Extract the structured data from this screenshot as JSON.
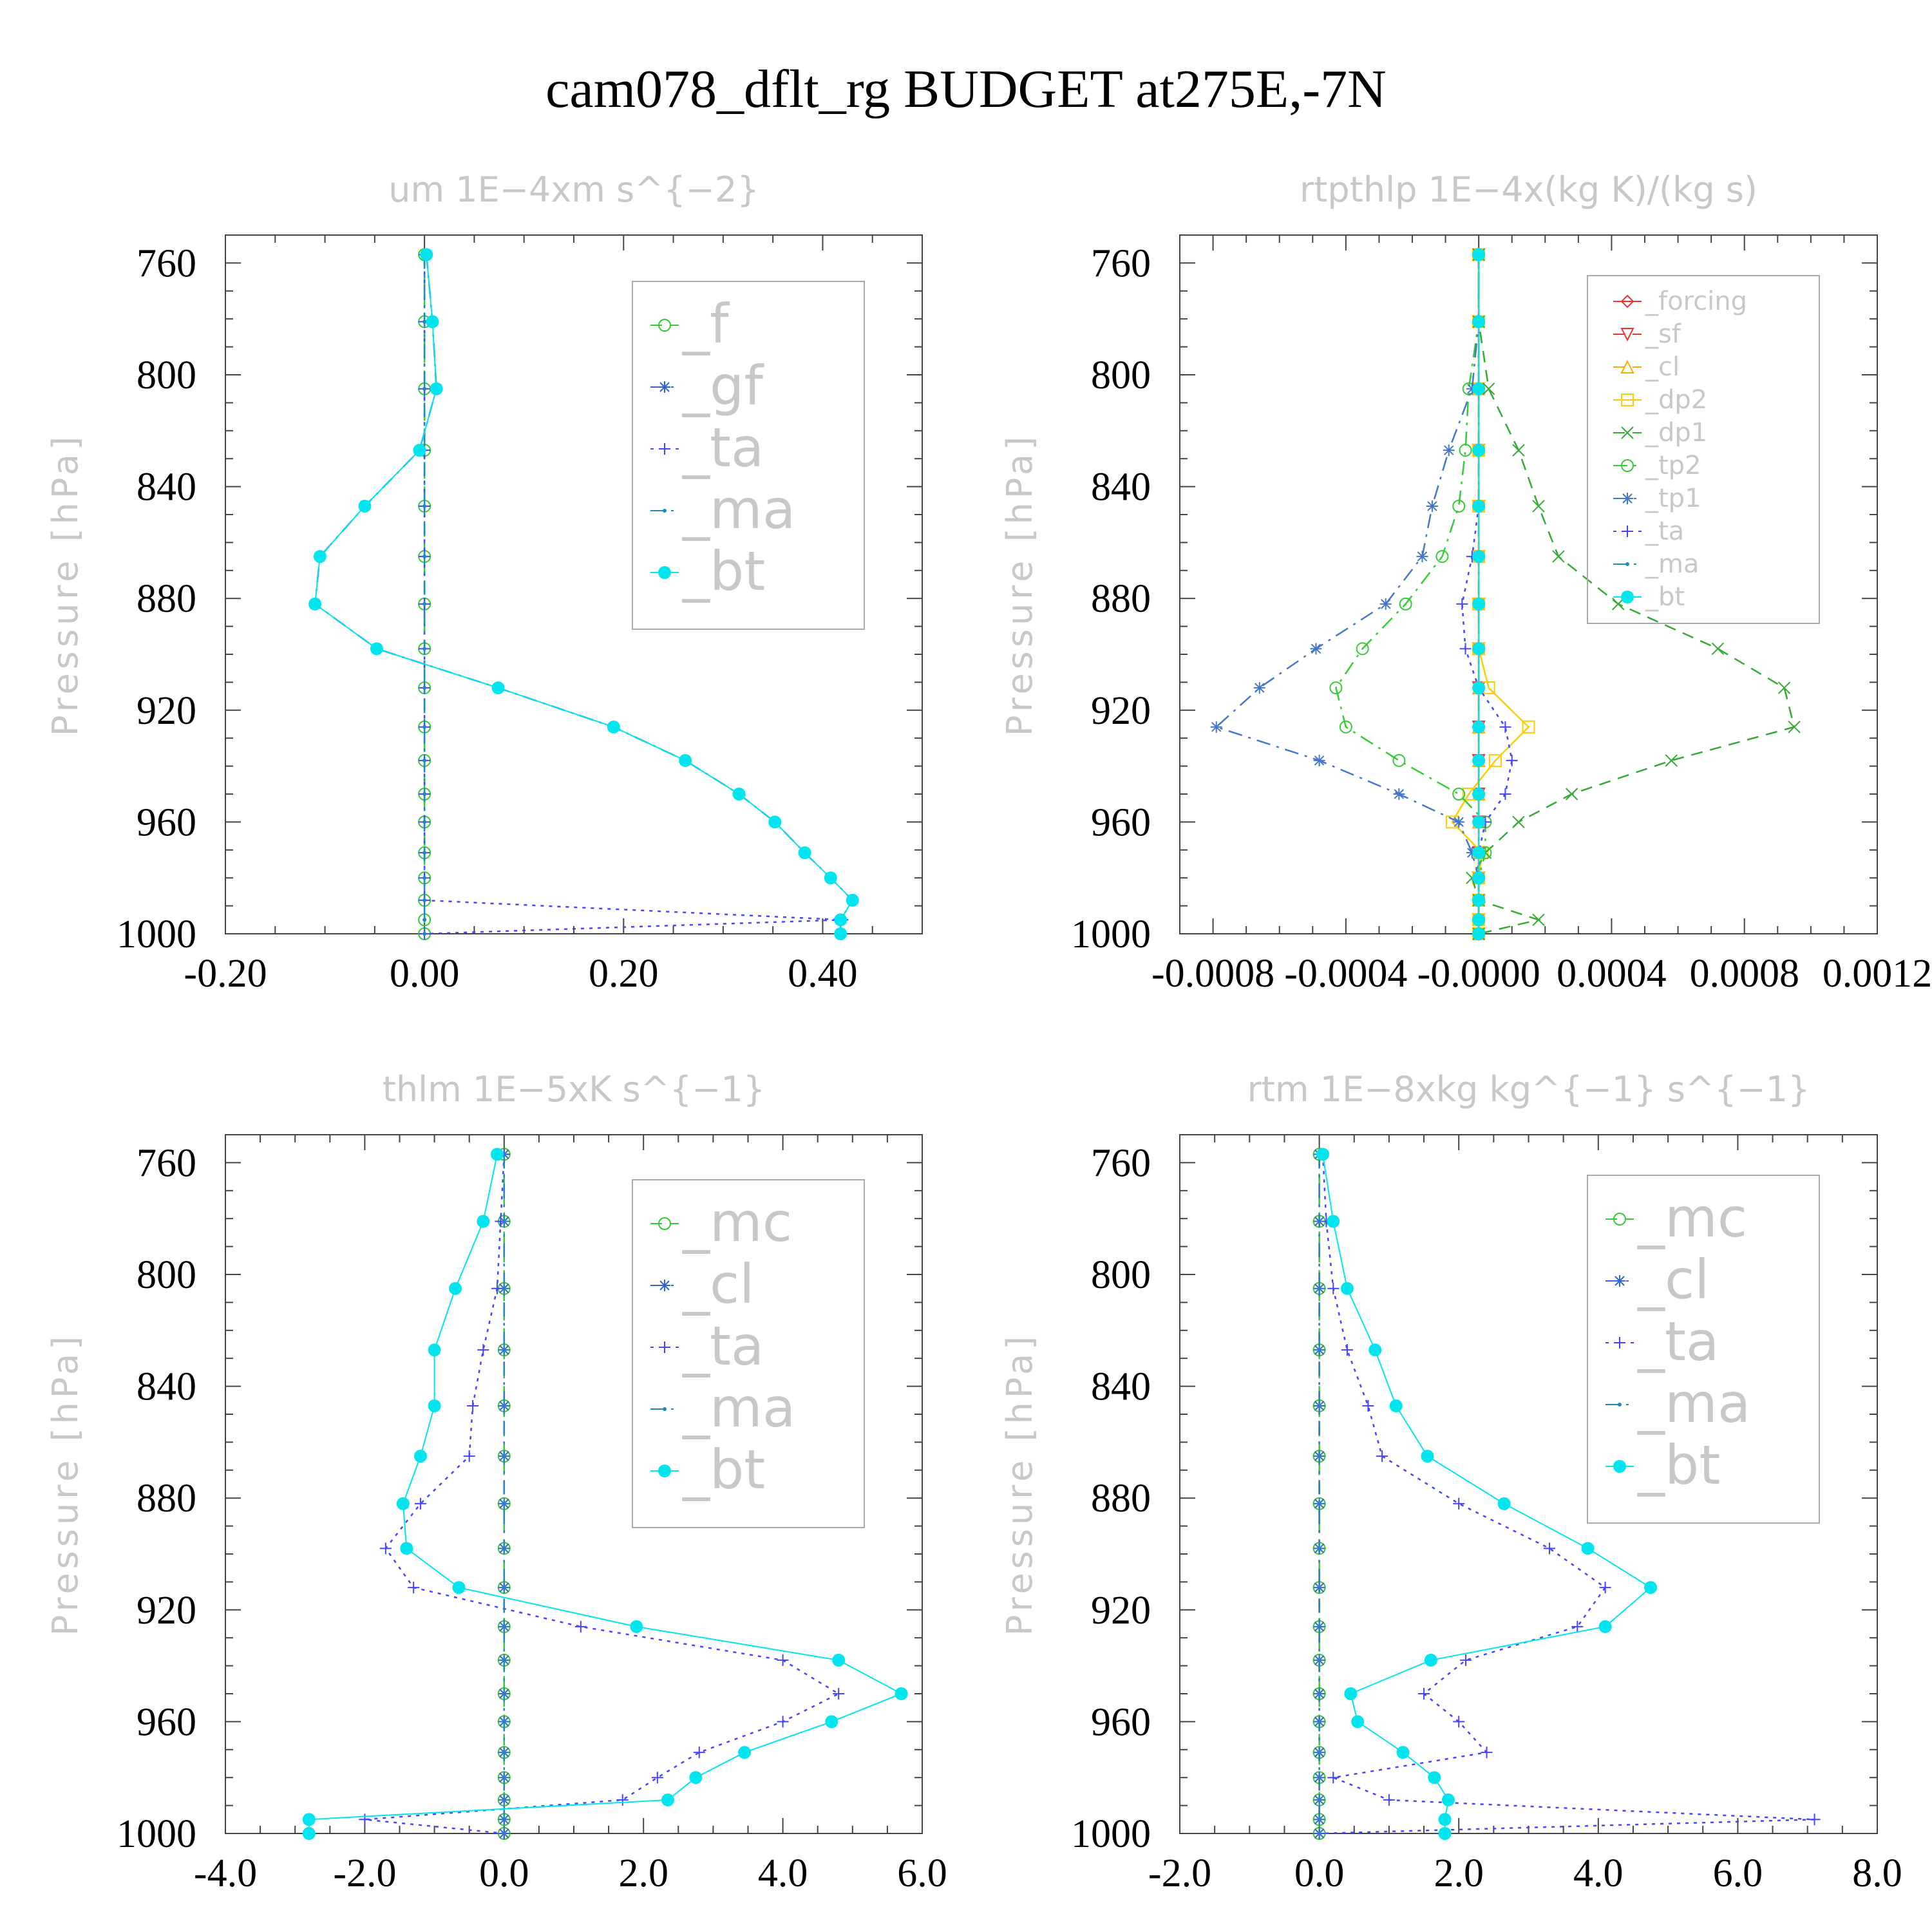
{
  "title": "cam078_dflt_rg  BUDGET at275E,-7N",
  "chart_data": [
    {
      "type": "line",
      "title": "um   1E−4xm s^{−2}",
      "ylabel": "Pressure [hPa]",
      "xlim": [
        -0.2,
        0.5
      ],
      "ylim": [
        1000,
        750
      ],
      "xticks": [
        -0.2,
        0.0,
        0.2,
        0.4
      ],
      "xtick_labels": [
        "-0.20",
        "0.00",
        "0.20",
        "0.40"
      ],
      "yticks": [
        760,
        800,
        840,
        880,
        920,
        960,
        1000
      ],
      "legend_size": "large",
      "pressure": [
        757,
        781,
        805,
        827,
        847,
        865,
        882,
        898,
        912,
        926,
        938,
        950,
        960,
        971,
        980,
        988,
        995,
        1000
      ],
      "series": [
        {
          "name": "_f",
          "color": "#33cc33",
          "style": "dash",
          "marker": "circle",
          "values": [
            0,
            0,
            0,
            0,
            0,
            0,
            0,
            0,
            0,
            0,
            0,
            0,
            0,
            0,
            0,
            0,
            0,
            0
          ]
        },
        {
          "name": "_gf",
          "color": "#3366cc",
          "style": "dashdot",
          "marker": "star",
          "values": [
            0.002,
            0.008,
            0.012,
            -0.005,
            -0.06,
            -0.105,
            -0.11,
            -0.048,
            0.074,
            0.19,
            0.262,
            0.316,
            0.352,
            0.382,
            0.408,
            0.43,
            0.418,
            0.418
          ]
        },
        {
          "name": "_ta",
          "color": "#4444ff",
          "style": "dot",
          "marker": "plus",
          "values": [
            0,
            0,
            0,
            0,
            0,
            0,
            0,
            0,
            0,
            0,
            0,
            0,
            0,
            0,
            0,
            0,
            0.42,
            0
          ]
        },
        {
          "name": "_ma",
          "color": "#2288bb",
          "style": "dashdot",
          "marker": "dot",
          "values": [
            0,
            0,
            0,
            0,
            0,
            0,
            0,
            0,
            0,
            0,
            0,
            0,
            0,
            0,
            0,
            0,
            0,
            0
          ]
        },
        {
          "name": "_bt",
          "color": "#00e5ee",
          "style": "solid",
          "marker": "bigdot",
          "values": [
            0.002,
            0.008,
            0.012,
            -0.005,
            -0.06,
            -0.105,
            -0.11,
            -0.048,
            0.074,
            0.19,
            0.262,
            0.316,
            0.352,
            0.382,
            0.408,
            0.43,
            0.418,
            0.418
          ]
        }
      ]
    },
    {
      "type": "line",
      "title": "rtpthlp   1E−4x(kg K)/(kg s)",
      "ylabel": "Pressure [hPa]",
      "xlim": [
        -0.0009,
        0.0012
      ],
      "ylim": [
        1000,
        750
      ],
      "xticks": [
        -0.0008,
        -0.0004,
        0.0,
        0.0004,
        0.0008,
        0.0012
      ],
      "xtick_labels": [
        "-0.0008",
        "-0.0004",
        "-0.0000",
        "0.0004",
        "0.0008",
        "0.0012"
      ],
      "yticks": [
        760,
        800,
        840,
        880,
        920,
        960,
        1000
      ],
      "legend_size": "small",
      "pressure": [
        757,
        781,
        805,
        827,
        847,
        865,
        882,
        898,
        912,
        926,
        938,
        950,
        960,
        971,
        980,
        988,
        995,
        1000
      ],
      "series": [
        {
          "name": "_forcing",
          "color": "#ee3333",
          "style": "solid",
          "marker": "diamond",
          "values": [
            0,
            0,
            0,
            0,
            0,
            0,
            0,
            0,
            0,
            0,
            0,
            0,
            0,
            0,
            0,
            0,
            0,
            0
          ]
        },
        {
          "name": "_sf",
          "color": "#ee3333",
          "style": "dash",
          "marker": "tri-down",
          "values": [
            0,
            0,
            0,
            0,
            0,
            0,
            0,
            0,
            0,
            0,
            0,
            0,
            0,
            0,
            0,
            0,
            0,
            0
          ]
        },
        {
          "name": "_cl",
          "color": "#ffaa00",
          "style": "dash",
          "marker": "tri-up",
          "values": [
            0,
            0,
            0,
            0,
            0,
            0,
            0,
            0,
            0,
            0,
            0,
            0,
            0,
            0,
            0,
            0,
            0,
            0
          ]
        },
        {
          "name": "_dp2",
          "color": "#ffcc00",
          "style": "solid",
          "marker": "square",
          "values": [
            0,
            0,
            0,
            0,
            0,
            0,
            0,
            0,
            3e-05,
            0.00015,
            5e-05,
            -3e-05,
            -8e-05,
            1e-05,
            0,
            0,
            0,
            0
          ]
        },
        {
          "name": "_dp1",
          "color": "#33aa33",
          "style": "dash",
          "marker": "x",
          "values": [
            0,
            0,
            3e-05,
            0.00012,
            0.00018,
            0.00024,
            0.00042,
            0.00072,
            0.00092,
            0.00095,
            0.00058,
            0.00028,
            0.00012,
            2e-05,
            -2e-05,
            0,
            0.00018,
            0
          ]
        },
        {
          "name": "_tp2",
          "color": "#33cc33",
          "style": "dashdot",
          "marker": "circle",
          "values": [
            0,
            0,
            -3e-05,
            -4e-05,
            -6e-05,
            -0.00011,
            -0.00022,
            -0.00035,
            -0.00043,
            -0.0004,
            -0.00024,
            -6e-05,
            2e-05,
            2e-05,
            0,
            0,
            0,
            0
          ]
        },
        {
          "name": "_tp1",
          "color": "#4477cc",
          "style": "dashdot",
          "marker": "star",
          "values": [
            0,
            0,
            -2e-05,
            -9e-05,
            -0.00014,
            -0.00017,
            -0.00028,
            -0.00049,
            -0.00066,
            -0.00079,
            -0.00048,
            -0.00024,
            -6e-05,
            -2e-05,
            0,
            0,
            0,
            0
          ]
        },
        {
          "name": "_ta",
          "color": "#4444ff",
          "style": "dot",
          "marker": "plus",
          "values": [
            0,
            0,
            0,
            0,
            0,
            -2e-05,
            -5e-05,
            -4e-05,
            0,
            8e-05,
            0.0001,
            8e-05,
            2e-05,
            0,
            0,
            0,
            0,
            0
          ]
        },
        {
          "name": "_ma",
          "color": "#2288bb",
          "style": "dashdot",
          "marker": "dot",
          "values": [
            0,
            0,
            0,
            0,
            0,
            0,
            0,
            0,
            0,
            0,
            0,
            0,
            0,
            0,
            0,
            0,
            0,
            0
          ]
        },
        {
          "name": "_bt",
          "color": "#00e5ee",
          "style": "solid",
          "marker": "bigdot",
          "values": [
            0,
            0,
            0,
            0,
            0,
            0,
            0,
            0,
            0,
            0,
            0,
            0,
            0,
            0,
            0,
            0,
            0,
            0
          ]
        }
      ]
    },
    {
      "type": "line",
      "title": "thlm   1E−5xK s^{−1}",
      "ylabel": "Pressure [hPa]",
      "xlim": [
        -4.0,
        6.0
      ],
      "ylim": [
        1000,
        750
      ],
      "xticks": [
        -4.0,
        -2.0,
        0.0,
        2.0,
        4.0,
        6.0
      ],
      "xtick_labels": [
        "-4.0",
        "-2.0",
        "0.0",
        "2.0",
        "4.0",
        "6.0"
      ],
      "yticks": [
        760,
        800,
        840,
        880,
        920,
        960,
        1000
      ],
      "legend_size": "large",
      "pressure": [
        757,
        781,
        805,
        827,
        847,
        865,
        882,
        898,
        912,
        926,
        938,
        950,
        960,
        971,
        980,
        988,
        995,
        1000
      ],
      "series": [
        {
          "name": "_mc",
          "color": "#33cc33",
          "style": "dash",
          "marker": "circle",
          "values": [
            0,
            0,
            0,
            0,
            0,
            0,
            0,
            0,
            0,
            0,
            0,
            0,
            0,
            0,
            0,
            0,
            0,
            0
          ]
        },
        {
          "name": "_cl",
          "color": "#3366cc",
          "style": "dashdot",
          "marker": "star",
          "values": [
            0,
            0,
            0,
            0,
            0,
            0,
            0,
            0,
            0,
            0,
            0,
            0,
            0,
            0,
            0,
            0,
            0,
            0
          ]
        },
        {
          "name": "_ta",
          "color": "#4444ff",
          "style": "dot",
          "marker": "plus",
          "values": [
            0,
            -0.05,
            -0.1,
            -0.3,
            -0.45,
            -0.5,
            -1.2,
            -1.7,
            -1.3,
            1.1,
            4.0,
            4.8,
            4.0,
            2.8,
            2.2,
            1.7,
            -2.0,
            0
          ]
        },
        {
          "name": "_ma",
          "color": "#2288bb",
          "style": "dashdot",
          "marker": "dot",
          "values": [
            0,
            0,
            0,
            0,
            0,
            0,
            0,
            0,
            0,
            0,
            0,
            0,
            0,
            0,
            0,
            0,
            0,
            0
          ]
        },
        {
          "name": "_bt",
          "color": "#00e5ee",
          "style": "solid",
          "marker": "bigdot",
          "values": [
            -0.1,
            -0.3,
            -0.7,
            -1.0,
            -1.0,
            -1.2,
            -1.45,
            -1.4,
            -0.65,
            1.9,
            4.8,
            5.7,
            4.7,
            3.45,
            2.75,
            2.35,
            -2.8,
            -2.8
          ]
        }
      ]
    },
    {
      "type": "line",
      "title": "rtm   1E−8xkg kg^{−1} s^{−1}",
      "ylabel": "Pressure [hPa]",
      "xlim": [
        -2.0,
        8.0
      ],
      "ylim": [
        1000,
        750
      ],
      "xticks": [
        -2.0,
        0.0,
        2.0,
        4.0,
        6.0,
        8.0
      ],
      "xtick_labels": [
        "-2.0",
        "0.0",
        "2.0",
        "4.0",
        "6.0",
        "8.0"
      ],
      "yticks": [
        760,
        800,
        840,
        880,
        920,
        960,
        1000
      ],
      "legend_size": "large",
      "pressure": [
        757,
        781,
        805,
        827,
        847,
        865,
        882,
        898,
        912,
        926,
        938,
        950,
        960,
        971,
        980,
        988,
        995,
        1000
      ],
      "series": [
        {
          "name": "_mc",
          "color": "#33cc33",
          "style": "dash",
          "marker": "circle",
          "values": [
            0,
            0,
            0,
            0,
            0,
            0,
            0,
            0,
            0,
            0,
            0,
            0,
            0,
            0,
            0,
            0,
            0,
            0
          ]
        },
        {
          "name": "_cl",
          "color": "#3366cc",
          "style": "dashdot",
          "marker": "star",
          "values": [
            0,
            0,
            0,
            0,
            0,
            0,
            0,
            0,
            0,
            0,
            0,
            0,
            0,
            0,
            0,
            0,
            0,
            0
          ]
        },
        {
          "name": "_ta",
          "color": "#4444ff",
          "style": "dot",
          "marker": "plus",
          "values": [
            0.05,
            0.1,
            0.2,
            0.4,
            0.7,
            0.9,
            2.0,
            3.3,
            4.1,
            3.7,
            2.1,
            1.5,
            2.0,
            2.4,
            0.2,
            1.0,
            7.1,
            0
          ]
        },
        {
          "name": "_ma",
          "color": "#2288bb",
          "style": "dashdot",
          "marker": "dot",
          "values": [
            0,
            0,
            0,
            0,
            0,
            0,
            0,
            0,
            0,
            0,
            0,
            0,
            0,
            0,
            0,
            0,
            0,
            0
          ]
        },
        {
          "name": "_bt",
          "color": "#00e5ee",
          "style": "solid",
          "marker": "bigdot",
          "values": [
            0.05,
            0.2,
            0.4,
            0.8,
            1.1,
            1.55,
            2.65,
            3.85,
            4.75,
            4.1,
            1.6,
            0.45,
            0.55,
            1.2,
            1.65,
            1.85,
            1.8,
            1.8
          ]
        }
      ]
    }
  ]
}
